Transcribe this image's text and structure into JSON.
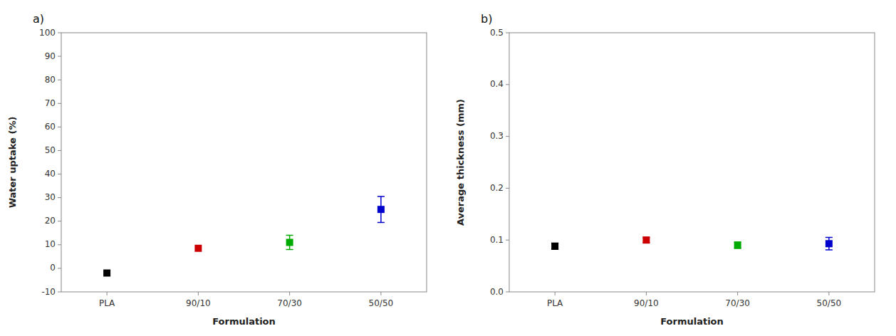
{
  "chart_data": [
    {
      "type": "scatter",
      "title": "a)",
      "x_label": "Formulation",
      "y_label": "Water uptake (%)",
      "categories": [
        "PLA",
        "90/10",
        "70/30",
        "50/50"
      ],
      "values": [
        -2.0,
        8.5,
        11.0,
        25.0
      ],
      "errors": [
        0.0,
        0.0,
        3.0,
        5.5
      ],
      "colors": [
        "#000000",
        "#cc0000",
        "#00aa00",
        "#0000cc"
      ],
      "marker": "square",
      "ylim": [
        -10,
        100
      ],
      "yticks": [
        -10,
        0,
        10,
        20,
        30,
        40,
        50,
        60,
        70,
        80,
        90,
        100
      ],
      "grid": false
    },
    {
      "type": "scatter",
      "title": "b)",
      "x_label": "Formulation",
      "y_label": "Average thickness (mm)",
      "categories": [
        "PLA",
        "90/10",
        "70/30",
        "50/50"
      ],
      "values": [
        0.088,
        0.1,
        0.09,
        0.093
      ],
      "errors": [
        0.006,
        0.005,
        0.006,
        0.012
      ],
      "colors": [
        "#000000",
        "#cc0000",
        "#00aa00",
        "#0000cc"
      ],
      "marker": "square",
      "ylim": [
        0.0,
        0.5
      ],
      "yticks": [
        {
          "value": 0.0,
          "label": "0.0"
        },
        0.1,
        0.2,
        0.3,
        0.4,
        0.5
      ],
      "grid": false
    }
  ]
}
